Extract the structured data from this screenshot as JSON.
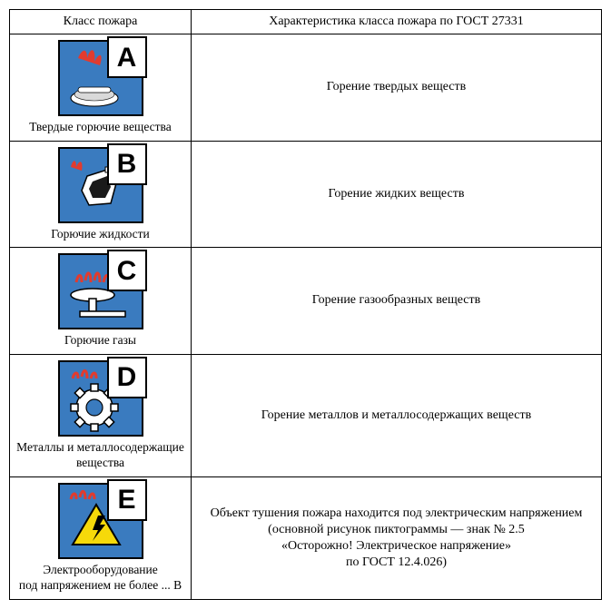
{
  "header": {
    "col1": "Класс пожара",
    "col2": "Характеристика класса пожара по ГОСТ 27331"
  },
  "rows": [
    {
      "letter": "A",
      "caption": "Твердые горючие вещества",
      "description": "Горение твердых веществ",
      "bg_color": "#3a7bbf",
      "icon": "wood-fire"
    },
    {
      "letter": "B",
      "caption": "Горючие жидкости",
      "description": "Горение жидких веществ",
      "bg_color": "#3a7bbf",
      "icon": "canister"
    },
    {
      "letter": "C",
      "caption": "Горючие газы",
      "description": "Горение газообразных веществ",
      "bg_color": "#3a7bbf",
      "icon": "burner"
    },
    {
      "letter": "D",
      "caption": "Металлы и металлосодержащие вещества",
      "description": "Горение металлов и металлосодержащих веществ",
      "bg_color": "#3a7bbf",
      "icon": "gear"
    },
    {
      "letter": "E",
      "caption": "Электрооборудование\nпод напряжением не более ... В",
      "description": "Объект тушения пожара находится под электрическим напряжением\n(основной рисунок пиктограммы — знак № 2.5\n«Осторожно! Электрическое напряжение»\nпо ГОСТ 12.4.026)",
      "bg_color": "#3a7bbf",
      "icon": "electric"
    }
  ],
  "style": {
    "border_color": "#000000",
    "background_color": "#ffffff",
    "font_family": "Times New Roman",
    "header_fontsize": 14,
    "cell_fontsize": 14,
    "caption_fontsize": 13.5,
    "letter_fontsize": 30,
    "pictogram_bg": "#3a7bbf",
    "pictogram_border": "#000000",
    "flame_color": "#e23b2e",
    "warning_triangle_fill": "#f6d90a",
    "warning_triangle_stroke": "#000000"
  }
}
